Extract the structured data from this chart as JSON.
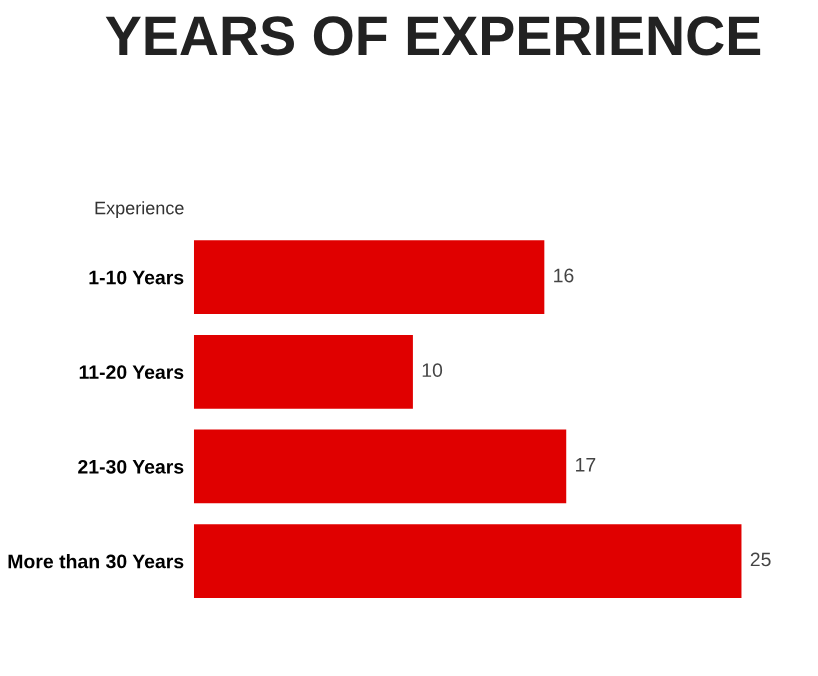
{
  "chart_data": {
    "type": "bar",
    "orientation": "horizontal",
    "title": "YEARS OF EXPERIENCE",
    "ylabel": "Experience",
    "categories": [
      "1-10 Years",
      "11-20 Years",
      "21-30 Years",
      "More than 30 Years"
    ],
    "values": [
      16,
      10,
      17,
      25
    ],
    "color": "#e00000",
    "data_labels": true,
    "grid": false,
    "legend": false
  }
}
